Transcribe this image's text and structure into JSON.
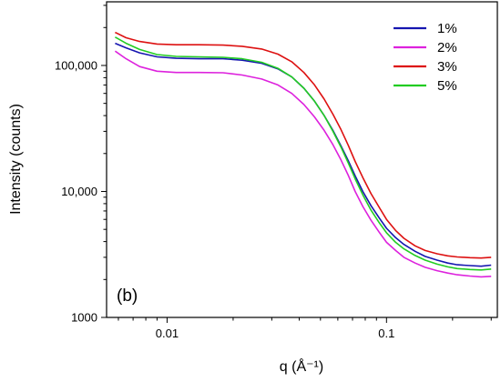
{
  "chart_data": {
    "type": "line",
    "panel_label": "(b)",
    "xlabel": "q (Å⁻¹)",
    "ylabel": "Intensity (counts)",
    "x_scale": "log",
    "y_scale": "log",
    "xlim": [
      0.0053,
      0.32
    ],
    "ylim": [
      1000,
      320000
    ],
    "x_tick_labels": [
      "0.01",
      "0.1"
    ],
    "x_tick_values": [
      0.01,
      0.1
    ],
    "y_tick_labels": [
      "1000",
      "10,000",
      "100,000"
    ],
    "y_tick_values": [
      1000,
      10000,
      100000
    ],
    "legend_position": "top-right",
    "series": [
      {
        "name": "1%",
        "color": "#1515b0",
        "x": [
          0.0058,
          0.0065,
          0.0075,
          0.009,
          0.011,
          0.014,
          0.018,
          0.022,
          0.027,
          0.032,
          0.037,
          0.042,
          0.047,
          0.052,
          0.057,
          0.062,
          0.067,
          0.072,
          0.078,
          0.085,
          0.093,
          0.1,
          0.11,
          0.12,
          0.135,
          0.15,
          0.17,
          0.19,
          0.21,
          0.24,
          0.27,
          0.3
        ],
        "y": [
          150000,
          138000,
          126000,
          117000,
          114000,
          113000,
          113000,
          110000,
          104000,
          94000,
          81000,
          66000,
          52000,
          40000,
          30500,
          23000,
          17500,
          13300,
          10000,
          7700,
          6100,
          5100,
          4300,
          3800,
          3350,
          3050,
          2850,
          2700,
          2620,
          2580,
          2550,
          2600
        ]
      },
      {
        "name": "2%",
        "color": "#dd22dd",
        "x": [
          0.0058,
          0.0065,
          0.0075,
          0.009,
          0.011,
          0.014,
          0.018,
          0.022,
          0.027,
          0.032,
          0.037,
          0.042,
          0.047,
          0.052,
          0.057,
          0.062,
          0.067,
          0.072,
          0.078,
          0.085,
          0.093,
          0.1,
          0.11,
          0.12,
          0.135,
          0.15,
          0.17,
          0.19,
          0.21,
          0.24,
          0.27,
          0.3
        ],
        "y": [
          130000,
          113000,
          98000,
          90000,
          88000,
          88000,
          87500,
          84000,
          78000,
          70000,
          60000,
          49000,
          39000,
          30500,
          23500,
          17800,
          13400,
          10000,
          7600,
          5900,
          4700,
          3950,
          3400,
          3000,
          2700,
          2500,
          2350,
          2250,
          2180,
          2130,
          2100,
          2120
        ]
      },
      {
        "name": "3%",
        "color": "#dd1111",
        "x": [
          0.0058,
          0.0065,
          0.0075,
          0.009,
          0.011,
          0.014,
          0.018,
          0.022,
          0.027,
          0.032,
          0.037,
          0.042,
          0.047,
          0.052,
          0.057,
          0.062,
          0.067,
          0.072,
          0.078,
          0.085,
          0.093,
          0.1,
          0.11,
          0.12,
          0.135,
          0.15,
          0.17,
          0.19,
          0.21,
          0.24,
          0.27,
          0.3
        ],
        "y": [
          183000,
          166000,
          155000,
          148000,
          146000,
          146000,
          145000,
          142000,
          135000,
          123000,
          107000,
          88000,
          70000,
          54000,
          41000,
          31000,
          23200,
          17300,
          12900,
          9600,
          7400,
          6000,
          4900,
          4250,
          3700,
          3400,
          3200,
          3080,
          3020,
          2980,
          2960,
          3000
        ]
      },
      {
        "name": "5%",
        "color": "#22cc22",
        "x": [
          0.0058,
          0.0065,
          0.0075,
          0.009,
          0.011,
          0.014,
          0.018,
          0.022,
          0.027,
          0.032,
          0.037,
          0.042,
          0.047,
          0.052,
          0.057,
          0.062,
          0.067,
          0.072,
          0.078,
          0.085,
          0.093,
          0.1,
          0.11,
          0.12,
          0.135,
          0.15,
          0.17,
          0.19,
          0.21,
          0.24,
          0.27,
          0.3
        ],
        "y": [
          168000,
          150000,
          134000,
          122000,
          118000,
          117000,
          116000,
          113000,
          106000,
          95000,
          81000,
          66000,
          52000,
          40000,
          30000,
          22500,
          16800,
          12600,
          9400,
          7100,
          5600,
          4700,
          3950,
          3500,
          3100,
          2850,
          2650,
          2520,
          2440,
          2400,
          2380,
          2420
        ]
      }
    ]
  }
}
